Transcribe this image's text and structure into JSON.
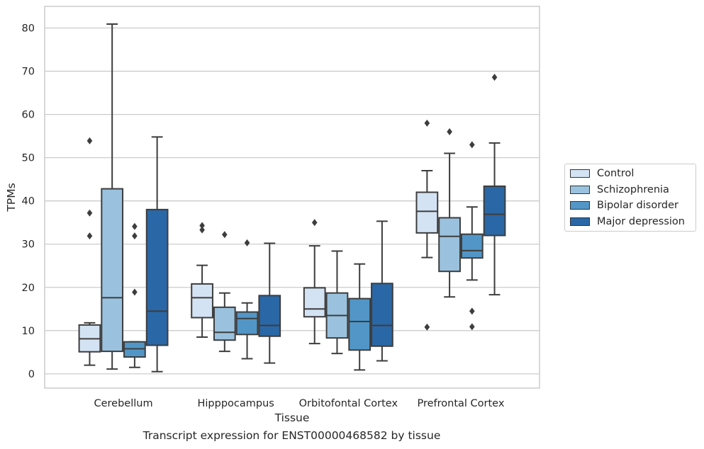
{
  "caption": "Transcript expression for ENST00000468582 by tissue",
  "chart_data": {
    "type": "box",
    "xlabel": "Tissue",
    "ylabel": "TPMs",
    "ylim": [
      -3.3,
      85
    ],
    "yticks": [
      0,
      10,
      20,
      30,
      40,
      50,
      60,
      70,
      80
    ],
    "grid": true,
    "legend_position": "right",
    "categories": [
      "Cerebellum",
      "Hipppocampus",
      "Orbitofontal Cortex",
      "Prefrontal Cortex"
    ],
    "series": [
      {
        "name": "Control",
        "color": "#d4e3f3",
        "boxes": [
          {
            "whislo": 2.0,
            "q1": 5.1,
            "med": 8.1,
            "q3": 11.3,
            "whishi": 11.8,
            "fliers": [
              31.9,
              37.2,
              53.9
            ]
          },
          {
            "whislo": 8.5,
            "q1": 13.0,
            "med": 17.6,
            "q3": 20.8,
            "whishi": 25.1,
            "fliers": [
              33.3,
              34.3
            ]
          },
          {
            "whislo": 7.0,
            "q1": 13.2,
            "med": 15.0,
            "q3": 19.9,
            "whishi": 29.6,
            "fliers": [
              35.0
            ]
          },
          {
            "whislo": 26.9,
            "q1": 32.6,
            "med": 37.6,
            "q3": 42.0,
            "whishi": 47.0,
            "fliers": [
              10.8,
              58.0
            ]
          }
        ]
      },
      {
        "name": "Schizophrenia",
        "color": "#9ac2de",
        "boxes": [
          {
            "whislo": 1.1,
            "q1": 5.2,
            "med": 17.6,
            "q3": 42.8,
            "whishi": 80.9,
            "fliers": []
          },
          {
            "whislo": 5.2,
            "q1": 7.8,
            "med": 9.6,
            "q3": 15.4,
            "whishi": 18.7,
            "fliers": [
              32.2
            ]
          },
          {
            "whislo": 4.7,
            "q1": 8.3,
            "med": 13.5,
            "q3": 18.7,
            "whishi": 28.4,
            "fliers": []
          },
          {
            "whislo": 17.8,
            "q1": 23.7,
            "med": 31.8,
            "q3": 36.1,
            "whishi": 51.0,
            "fliers": [
              56.0
            ]
          }
        ]
      },
      {
        "name": "Bipolar disorder",
        "color": "#5296c7",
        "boxes": [
          {
            "whislo": 1.5,
            "q1": 3.9,
            "med": 5.8,
            "q3": 7.4,
            "whishi": 7.4,
            "fliers": [
              18.9,
              31.9,
              34.1
            ]
          },
          {
            "whislo": 3.5,
            "q1": 9.1,
            "med": 12.8,
            "q3": 14.3,
            "whishi": 16.4,
            "fliers": [
              30.3
            ]
          },
          {
            "whislo": 0.9,
            "q1": 5.5,
            "med": 12.1,
            "q3": 17.4,
            "whishi": 25.4,
            "fliers": []
          },
          {
            "whislo": 21.7,
            "q1": 26.8,
            "med": 28.5,
            "q3": 32.3,
            "whishi": 38.6,
            "fliers": [
              10.9,
              14.5,
              53.0
            ]
          }
        ]
      },
      {
        "name": "Major depression",
        "color": "#2a67a6",
        "boxes": [
          {
            "whislo": 0.5,
            "q1": 6.6,
            "med": 14.5,
            "q3": 38.0,
            "whishi": 54.8,
            "fliers": []
          },
          {
            "whislo": 2.5,
            "q1": 8.7,
            "med": 11.2,
            "q3": 18.1,
            "whishi": 30.2,
            "fliers": []
          },
          {
            "whislo": 3.0,
            "q1": 6.4,
            "med": 11.2,
            "q3": 20.9,
            "whishi": 35.3,
            "fliers": []
          },
          {
            "whislo": 18.3,
            "q1": 32.0,
            "med": 36.9,
            "q3": 43.4,
            "whishi": 53.4,
            "fliers": [
              68.6
            ]
          }
        ]
      }
    ]
  }
}
